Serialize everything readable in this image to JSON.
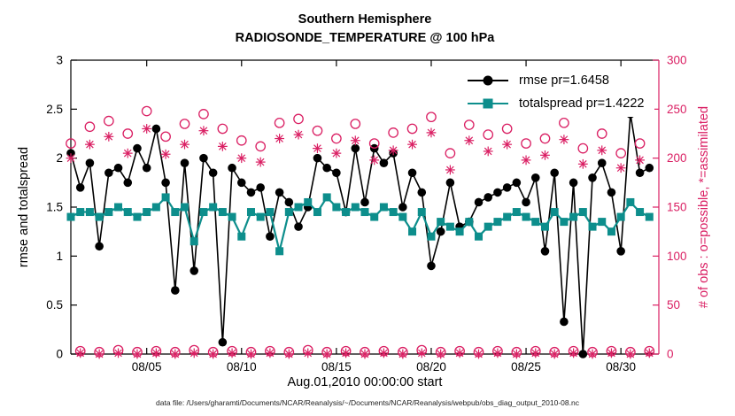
{
  "figure": {
    "title_line1": "Southern Hemisphere",
    "title_line2": "RADIOSONDE_TEMPERATURE @ 100 hPa"
  },
  "chart_data": {
    "type": "line",
    "title": "Southern Hemisphere",
    "subtitle": "RADIOSONDE_TEMPERATURE @ 100 hPa",
    "xlabel": "Aug.01,2010 00:00:00 start",
    "ylabel_left": "rmse and totalspread",
    "ylabel_right": "# of obs : o=possible, *=assimilated",
    "footer": "data file: /Users/gharamti/Documents/NCAR/Reanalysis/~/Documents/NCAR/Reanalysis/webpub/obs_diag_output_2010-08.nc",
    "ylim_left": [
      0,
      3
    ],
    "ylim_right": [
      0,
      300
    ],
    "x_domain": [
      0,
      62
    ],
    "y_ticks_left": [
      0,
      0.5,
      1,
      1.5,
      2,
      2.5,
      3
    ],
    "y_ticks_right": [
      0,
      50,
      100,
      150,
      200,
      250,
      300
    ],
    "x_ticks": [
      {
        "pos": 8,
        "label": "08/05"
      },
      {
        "pos": 18,
        "label": "08/10"
      },
      {
        "pos": 28,
        "label": "08/15"
      },
      {
        "pos": 38,
        "label": "08/20"
      },
      {
        "pos": 48,
        "label": "08/25"
      },
      {
        "pos": 58,
        "label": "08/30"
      }
    ],
    "colors": {
      "rmse": "#000000",
      "totalspread": "#0d8e8c",
      "obs": "#da1f63"
    },
    "series": [
      {
        "name": "rmse pr=1.6458",
        "marker": "circle",
        "color_key": "rmse",
        "values": [
          2.05,
          1.7,
          1.95,
          1.1,
          1.85,
          1.9,
          1.75,
          2.1,
          1.9,
          2.3,
          1.75,
          0.65,
          1.95,
          0.85,
          2.0,
          1.85,
          0.12,
          1.9,
          1.75,
          1.65,
          1.7,
          1.2,
          1.65,
          1.55,
          1.3,
          1.5,
          2.0,
          1.9,
          1.85,
          1.45,
          2.1,
          1.55,
          2.1,
          1.95,
          2.05,
          1.5,
          1.85,
          1.65,
          0.9,
          1.25,
          1.75,
          1.3,
          1.35,
          1.55,
          1.6,
          1.65,
          1.7,
          1.75,
          1.55,
          1.8,
          1.05,
          1.85,
          0.33,
          1.75,
          0.0,
          1.8,
          1.95,
          1.65,
          1.05,
          2.45,
          1.85,
          1.9
        ]
      },
      {
        "name": "totalspread pr=1.4222",
        "marker": "square",
        "color_key": "totalspread",
        "values": [
          1.4,
          1.45,
          1.45,
          1.4,
          1.45,
          1.5,
          1.45,
          1.4,
          1.45,
          1.5,
          1.6,
          1.45,
          1.5,
          1.15,
          1.45,
          1.5,
          1.45,
          1.4,
          1.2,
          1.45,
          1.4,
          1.45,
          1.05,
          1.45,
          1.5,
          1.55,
          1.45,
          1.6,
          1.5,
          1.45,
          1.5,
          1.45,
          1.4,
          1.5,
          1.45,
          1.4,
          1.25,
          1.45,
          1.2,
          1.35,
          1.3,
          1.25,
          1.35,
          1.2,
          1.3,
          1.35,
          1.4,
          1.45,
          1.4,
          1.35,
          1.3,
          1.45,
          1.35,
          1.4,
          1.45,
          1.3,
          1.35,
          1.25,
          1.4,
          1.55,
          1.45,
          1.4
        ]
      }
    ],
    "obs_series": [
      {
        "name": "possible",
        "marker": "o",
        "values": [
          215,
          3,
          232,
          2,
          238,
          4,
          225,
          2,
          248,
          3,
          222,
          2,
          235,
          4,
          245,
          2,
          230,
          3,
          218,
          2,
          212,
          3,
          236,
          2,
          240,
          4,
          228,
          2,
          220,
          3,
          235,
          2,
          215,
          3,
          226,
          2,
          230,
          4,
          242,
          2,
          205,
          3,
          234,
          2,
          224,
          3,
          230,
          2,
          215,
          3,
          220,
          2,
          236,
          3,
          210,
          2,
          225,
          3,
          205,
          2,
          215,
          3
        ]
      },
      {
        "name": "assimilated",
        "marker": "asterisk",
        "values": [
          200,
          1,
          214,
          0,
          222,
          1,
          205,
          0,
          230,
          1,
          204,
          0,
          214,
          1,
          228,
          0,
          212,
          1,
          200,
          0,
          196,
          1,
          220,
          0,
          224,
          1,
          210,
          0,
          205,
          1,
          218,
          0,
          198,
          1,
          208,
          0,
          214,
          1,
          226,
          0,
          188,
          1,
          218,
          0,
          207,
          1,
          214,
          0,
          198,
          1,
          203,
          0,
          219,
          1,
          194,
          0,
          208,
          1,
          190,
          0,
          198,
          1
        ]
      }
    ],
    "legend_position": "top-right-inside",
    "grid": "off"
  }
}
